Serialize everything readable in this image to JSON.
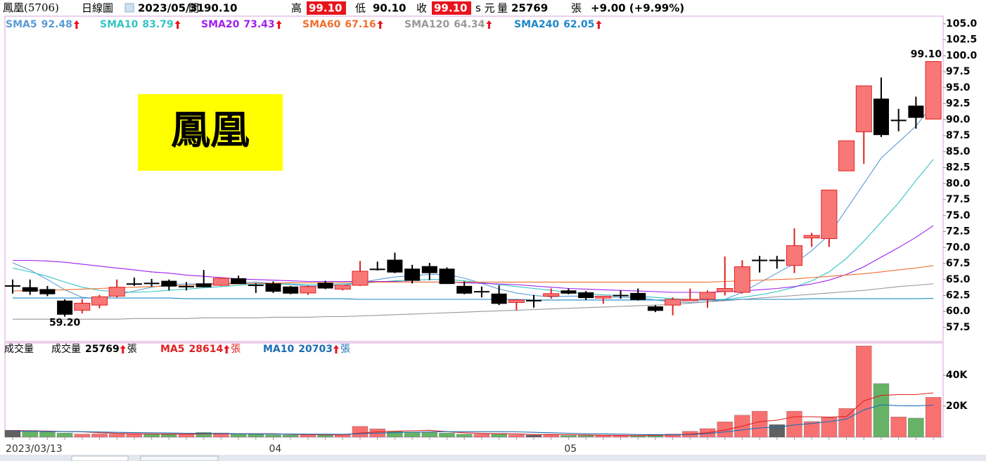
{
  "header": {
    "name": "鳳凰(5706)",
    "period": "日線圖",
    "date": "2023/05/31",
    "open_label": "開",
    "open": "90.10",
    "high_label": "高",
    "high": "99.10",
    "low_label": "低",
    "low": "90.10",
    "close_label": "收",
    "close": "99.10",
    "unit": "s 元",
    "volume_label": "量",
    "volume": "25769",
    "volume_unit": "張",
    "change": "+9.00 (+9.99%)"
  },
  "watermark": "鳳凰",
  "chart_data": [
    {
      "type": "candlestick",
      "up_color": "#f87878",
      "up_stroke": "#e02020",
      "down_color": "#000000",
      "high_label": "99.10",
      "low_label": "59.20",
      "open": [
        64.1,
        63.8,
        63.5,
        61.7,
        60.2,
        61.0,
        62.4,
        64.4,
        64.5,
        64.8,
        64.0,
        64.4,
        64.1,
        65.2,
        64.2,
        64.4,
        63.9,
        62.9,
        64.5,
        63.5,
        64.1,
        66.7,
        68.1,
        66.7,
        67.1,
        66.7,
        64.0,
        63.2,
        62.8,
        61.4,
        61.8,
        62.4,
        63.3,
        63.0,
        62.1,
        62.6,
        62.9,
        60.8,
        61.0,
        61.8,
        61.9,
        63.1,
        63.0,
        68.1,
        68.1,
        67.2,
        71.5,
        71.4,
        82.0,
        88.1,
        93.3,
        90.0,
        92.2,
        90.1
      ],
      "high": [
        65.0,
        65.0,
        64.0,
        61.9,
        61.9,
        62.6,
        65.0,
        65.3,
        65.1,
        65.0,
        64.6,
        66.5,
        65.3,
        65.6,
        64.4,
        64.7,
        64.0,
        64.1,
        64.8,
        64.1,
        67.9,
        67.8,
        69.2,
        67.3,
        67.6,
        66.9,
        64.7,
        63.9,
        64.1,
        61.9,
        62.6,
        63.6,
        63.6,
        63.2,
        62.4,
        63.3,
        63.6,
        61.0,
        62.2,
        63.6,
        63.3,
        68.6,
        68.0,
        68.7,
        68.7,
        73.0,
        72.3,
        79.0,
        86.7,
        95.3,
        96.6,
        91.7,
        93.6,
        99.1
      ],
      "low": [
        62.8,
        62.6,
        62.4,
        59.2,
        59.7,
        60.5,
        62.2,
        64.0,
        63.9,
        63.3,
        63.3,
        63.8,
        64.0,
        64.3,
        62.9,
        62.9,
        62.7,
        62.6,
        63.5,
        63.3,
        64.0,
        66.4,
        66.0,
        64.4,
        64.9,
        64.3,
        62.7,
        62.2,
        61.0,
        60.2,
        60.6,
        62.0,
        62.7,
        61.8,
        61.2,
        62.0,
        61.7,
        59.9,
        59.4,
        61.7,
        60.6,
        62.5,
        62.8,
        66.1,
        66.7,
        66.0,
        70.1,
        70.1,
        82.0,
        83.1,
        87.3,
        88.2,
        88.6,
        90.1
      ],
      "close": [
        64.1,
        63.1,
        62.7,
        59.5,
        61.3,
        62.3,
        63.8,
        64.4,
        64.4,
        63.9,
        64.0,
        63.8,
        65.2,
        64.3,
        64.2,
        63.1,
        62.8,
        63.9,
        63.6,
        64.1,
        66.3,
        66.7,
        66.1,
        64.8,
        66.0,
        64.3,
        62.8,
        63.2,
        61.2,
        61.8,
        61.8,
        62.8,
        62.8,
        62.1,
        62.4,
        62.6,
        61.8,
        60.1,
        61.9,
        61.9,
        63.0,
        63.6,
        67.0,
        68.1,
        68.1,
        70.3,
        71.9,
        79.0,
        86.7,
        95.3,
        87.6,
        90.0,
        90.3,
        99.1
      ],
      "series": [
        {
          "name": "SMA5",
          "color": "#5b9bd5",
          "values": [
            67.6,
            66.5,
            65.0,
            63.4,
            62.2,
            62.0,
            62.6,
            63.2,
            63.8,
            64.2,
            64.3,
            64.3,
            64.4,
            64.5,
            64.6,
            64.4,
            64.2,
            64.0,
            64.0,
            64.1,
            64.5,
            65.0,
            65.4,
            65.6,
            65.8,
            65.8,
            65.2,
            64.4,
            63.5,
            62.9,
            62.5,
            62.3,
            62.4,
            62.4,
            62.3,
            62.2,
            62.2,
            61.8,
            61.5,
            61.4,
            61.5,
            61.9,
            63.0,
            64.5,
            66.0,
            67.5,
            69.5,
            72.0,
            76.0,
            80.0,
            84.0,
            86.5,
            89.0,
            92.48
          ]
        },
        {
          "name": "SMA10",
          "color": "#33c4c4",
          "values": [
            66.8,
            66.2,
            65.5,
            64.6,
            63.8,
            63.3,
            63.1,
            63.0,
            63.1,
            63.3,
            63.5,
            63.7,
            63.9,
            64.1,
            64.3,
            64.3,
            64.3,
            64.2,
            64.2,
            64.3,
            64.4,
            64.6,
            64.8,
            64.9,
            65.0,
            65.0,
            64.8,
            64.5,
            64.2,
            63.9,
            63.6,
            63.3,
            63.0,
            62.8,
            62.6,
            62.5,
            62.4,
            62.2,
            62.0,
            61.9,
            61.8,
            61.9,
            62.2,
            62.6,
            63.1,
            63.8,
            64.8,
            66.2,
            68.3,
            71.0,
            74.0,
            77.0,
            80.5,
            83.79
          ]
        },
        {
          "name": "SMA20",
          "color": "#a020f0",
          "values": [
            68.0,
            68.0,
            67.9,
            67.7,
            67.4,
            67.1,
            66.8,
            66.5,
            66.2,
            66.0,
            65.7,
            65.5,
            65.3,
            65.1,
            65.0,
            64.9,
            64.8,
            64.7,
            64.7,
            64.7,
            64.7,
            64.7,
            64.7,
            64.6,
            64.6,
            64.6,
            64.5,
            64.4,
            64.3,
            64.2,
            64.0,
            63.8,
            63.6,
            63.5,
            63.4,
            63.3,
            63.2,
            63.1,
            63.0,
            63.0,
            63.0,
            63.1,
            63.2,
            63.4,
            63.6,
            63.9,
            64.3,
            64.9,
            65.8,
            67.0,
            68.5,
            70.0,
            71.6,
            73.43
          ]
        },
        {
          "name": "SMA60",
          "color": "#f07030",
          "values": [
            63.2,
            63.3,
            63.3,
            63.4,
            63.5,
            63.6,
            63.7,
            63.8,
            63.9,
            64.0,
            64.1,
            64.2,
            64.3,
            64.3,
            64.4,
            64.4,
            64.5,
            64.5,
            64.5,
            64.5,
            64.6,
            64.6,
            64.6,
            64.6,
            64.6,
            64.6,
            64.6,
            64.6,
            64.6,
            64.6,
            64.6,
            64.6,
            64.6,
            64.6,
            64.6,
            64.6,
            64.6,
            64.6,
            64.6,
            64.6,
            64.6,
            64.7,
            64.8,
            64.9,
            65.0,
            65.1,
            65.3,
            65.5,
            65.7,
            65.9,
            66.2,
            66.5,
            66.8,
            67.16
          ]
        },
        {
          "name": "SMA120",
          "color": "#999999",
          "values": [
            58.8,
            58.8,
            58.8,
            58.8,
            58.8,
            58.8,
            58.8,
            58.9,
            58.9,
            58.9,
            58.9,
            59.0,
            59.0,
            59.0,
            59.0,
            59.1,
            59.1,
            59.1,
            59.2,
            59.2,
            59.3,
            59.4,
            59.5,
            59.6,
            59.7,
            59.8,
            59.9,
            60.0,
            60.1,
            60.2,
            60.3,
            60.4,
            60.5,
            60.6,
            60.7,
            60.8,
            60.9,
            61.0,
            61.1,
            61.3,
            61.5,
            61.7,
            61.9,
            62.1,
            62.3,
            62.5,
            62.7,
            62.9,
            63.1,
            63.3,
            63.6,
            63.9,
            64.1,
            64.34
          ]
        },
        {
          "name": "SMA240",
          "color": "#1e88c8",
          "values": [
            62.1,
            62.1,
            62.1,
            62.1,
            62.1,
            62.1,
            62.1,
            62.1,
            62.1,
            62.1,
            62.0,
            62.0,
            62.0,
            62.0,
            62.0,
            62.0,
            62.0,
            62.0,
            62.0,
            62.0,
            61.9,
            61.9,
            61.9,
            61.9,
            61.9,
            61.9,
            61.9,
            61.9,
            61.9,
            61.9,
            61.8,
            61.8,
            61.8,
            61.8,
            61.8,
            61.8,
            61.8,
            61.8,
            61.8,
            61.8,
            61.8,
            61.8,
            61.9,
            61.9,
            61.9,
            61.9,
            62.0,
            62.0,
            62.0,
            62.0,
            62.0,
            62.0,
            62.0,
            62.05
          ]
        }
      ],
      "ylim": [
        55.3,
        106.2
      ],
      "yticks": [
        {
          "value": 57.5,
          "label": "57.5"
        },
        {
          "value": 60,
          "label": "60.0"
        },
        {
          "value": 62.5,
          "label": "62.5"
        },
        {
          "value": 65,
          "label": "65.0"
        },
        {
          "value": 67.5,
          "label": "67.5"
        },
        {
          "value": 70,
          "label": "70.0"
        },
        {
          "value": 72.5,
          "label": "72.5"
        },
        {
          "value": 75,
          "label": "75.0"
        },
        {
          "value": 77.5,
          "label": "77.5"
        },
        {
          "value": 80,
          "label": "80.0"
        },
        {
          "value": 82.5,
          "label": "82.5"
        },
        {
          "value": 85,
          "label": "85.0"
        },
        {
          "value": 87.5,
          "label": "87.5"
        },
        {
          "value": 90,
          "label": "90.0"
        },
        {
          "value": 92.5,
          "label": "92.5"
        },
        {
          "value": 95,
          "label": "95.0"
        },
        {
          "value": 97.5,
          "label": "97.5"
        },
        {
          "value": 100,
          "label": "100.0"
        },
        {
          "value": 102.5,
          "label": "102.5"
        },
        {
          "value": 105,
          "label": "105.0"
        }
      ]
    },
    {
      "type": "bar",
      "title": "成交量",
      "unit": "張",
      "up_color": "#f87070",
      "down_color": "#66b266",
      "flat_color": "#606060",
      "categories": [
        "2023/03/13",
        null,
        null,
        null,
        null,
        null,
        null,
        null,
        null,
        null,
        null,
        null,
        null,
        null,
        null,
        "04",
        null,
        null,
        null,
        null,
        null,
        null,
        null,
        null,
        null,
        null,
        null,
        null,
        null,
        null,
        null,
        null,
        "05",
        null,
        null,
        null,
        null,
        null,
        null,
        null,
        null,
        null,
        null,
        null,
        null,
        null,
        null,
        null,
        null,
        null,
        null,
        null,
        null,
        null
      ],
      "series": [
        {
          "name": "成交量",
          "values": [
            4500,
            4300,
            3400,
            2600,
            2000,
            2100,
            2000,
            2200,
            2000,
            1800,
            1700,
            3000,
            2700,
            1900,
            1800,
            1500,
            1400,
            1500,
            1400,
            1600,
            7000,
            5400,
            3500,
            3200,
            3000,
            2600,
            1900,
            1900,
            2400,
            1500,
            1300,
            1500,
            1100,
            1000,
            1100,
            1000,
            1000,
            1800,
            2000,
            3800,
            5500,
            9900,
            14200,
            16800,
            8100,
            16800,
            10100,
            12600,
            18600,
            59000,
            34600,
            13100,
            12300,
            25769
          ]
        },
        {
          "name": "MA5",
          "color": "#e02020",
          "values": [
            4200,
            4100,
            3900,
            3600,
            3400,
            2900,
            2400,
            2200,
            2100,
            2000,
            1900,
            2100,
            2200,
            2200,
            2200,
            2200,
            1900,
            1600,
            1500,
            1500,
            2600,
            3400,
            3800,
            4100,
            4400,
            3500,
            2800,
            2400,
            2200,
            2100,
            1700,
            1700,
            1600,
            1400,
            1200,
            1100,
            1000,
            1200,
            1400,
            1900,
            2800,
            4600,
            7100,
            10000,
            10900,
            13200,
            13200,
            12900,
            13300,
            23400,
            27000,
            27500,
            27500,
            28614
          ]
        },
        {
          "name": "MA10",
          "color": "#1e6eb4",
          "values": [
            3800,
            3800,
            3700,
            3600,
            3500,
            3300,
            3100,
            2900,
            2800,
            2700,
            2500,
            2400,
            2300,
            2200,
            2100,
            2000,
            2000,
            1900,
            1900,
            1800,
            2200,
            2600,
            2900,
            3200,
            3400,
            3500,
            3500,
            3500,
            3500,
            3400,
            3100,
            2800,
            2500,
            2200,
            2100,
            1900,
            1700,
            1600,
            1500,
            1600,
            2300,
            3300,
            4700,
            5900,
            6400,
            7800,
            8800,
            10000,
            11700,
            17600,
            20900,
            20300,
            20200,
            20703
          ]
        }
      ],
      "ylim": [
        0,
        60000
      ],
      "yticks": [
        {
          "value": 20000,
          "label": "20K"
        },
        {
          "value": 40000,
          "label": "40K"
        }
      ]
    }
  ]
}
